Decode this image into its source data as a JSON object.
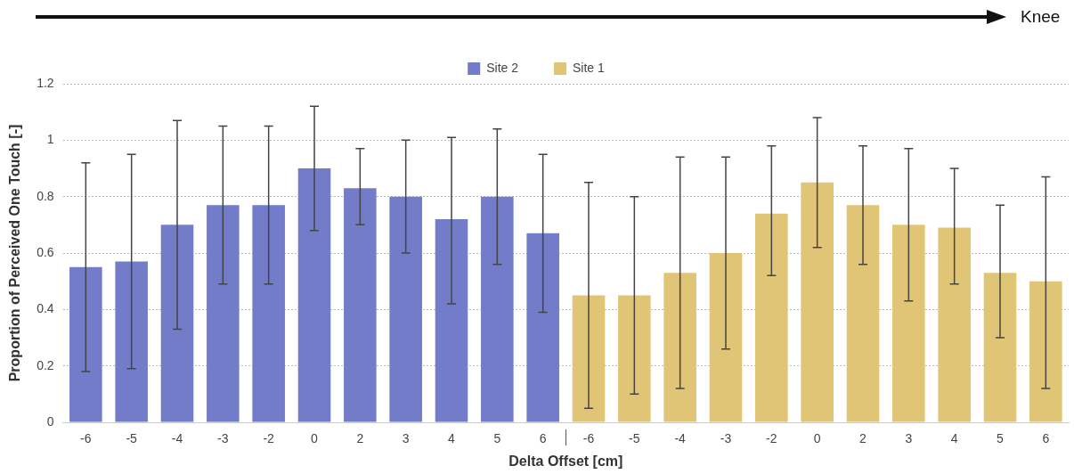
{
  "chart_data": {
    "type": "bar",
    "xlabel": "Delta Offset [cm]",
    "ylabel": "Proportion of Perceived One Touch [-]",
    "annotations": [
      "Knee"
    ],
    "categories": [
      "-6",
      "-5",
      "-4",
      "-3",
      "-2",
      "0",
      "2",
      "3",
      "4",
      "5",
      "6",
      "-6",
      "-5",
      "-4",
      "-3",
      "-2",
      "0",
      "2",
      "3",
      "4",
      "5",
      "6"
    ],
    "series": [
      {
        "name": "Site 2",
        "color": "#737cc9",
        "values": [
          0.55,
          0.57,
          0.7,
          0.77,
          0.77,
          0.9,
          0.83,
          0.8,
          0.72,
          0.8,
          0.67,
          null,
          null,
          null,
          null,
          null,
          null,
          null,
          null,
          null,
          null,
          null
        ],
        "errors": [
          [
            0.18,
            0.92
          ],
          [
            0.19,
            0.95
          ],
          [
            0.33,
            1.07
          ],
          [
            0.49,
            1.05
          ],
          [
            0.49,
            1.05
          ],
          [
            0.68,
            1.12
          ],
          [
            0.7,
            0.97
          ],
          [
            0.6,
            1.0
          ],
          [
            0.42,
            1.01
          ],
          [
            0.56,
            1.04
          ],
          [
            0.39,
            0.95
          ],
          null,
          null,
          null,
          null,
          null,
          null,
          null,
          null,
          null,
          null,
          null
        ]
      },
      {
        "name": "Site 1",
        "color": "#e0c577",
        "values": [
          null,
          null,
          null,
          null,
          null,
          null,
          null,
          null,
          null,
          null,
          null,
          0.45,
          0.45,
          0.53,
          0.6,
          0.74,
          0.85,
          0.77,
          0.7,
          0.69,
          0.53,
          0.5
        ],
        "errors": [
          null,
          null,
          null,
          null,
          null,
          null,
          null,
          null,
          null,
          null,
          null,
          [
            0.05,
            0.85
          ],
          [
            0.1,
            0.8
          ],
          [
            0.12,
            0.94
          ],
          [
            0.26,
            0.94
          ],
          [
            0.52,
            0.98
          ],
          [
            0.62,
            1.08
          ],
          [
            0.56,
            0.98
          ],
          [
            0.43,
            0.97
          ],
          [
            0.49,
            0.9
          ],
          [
            0.3,
            0.77
          ],
          [
            0.12,
            0.87
          ]
        ]
      }
    ],
    "ylim": [
      0,
      1.2
    ],
    "yticks": [
      0,
      0.2,
      0.4,
      0.6,
      0.8,
      1,
      1.2
    ],
    "grid": "y",
    "legend": "top"
  }
}
